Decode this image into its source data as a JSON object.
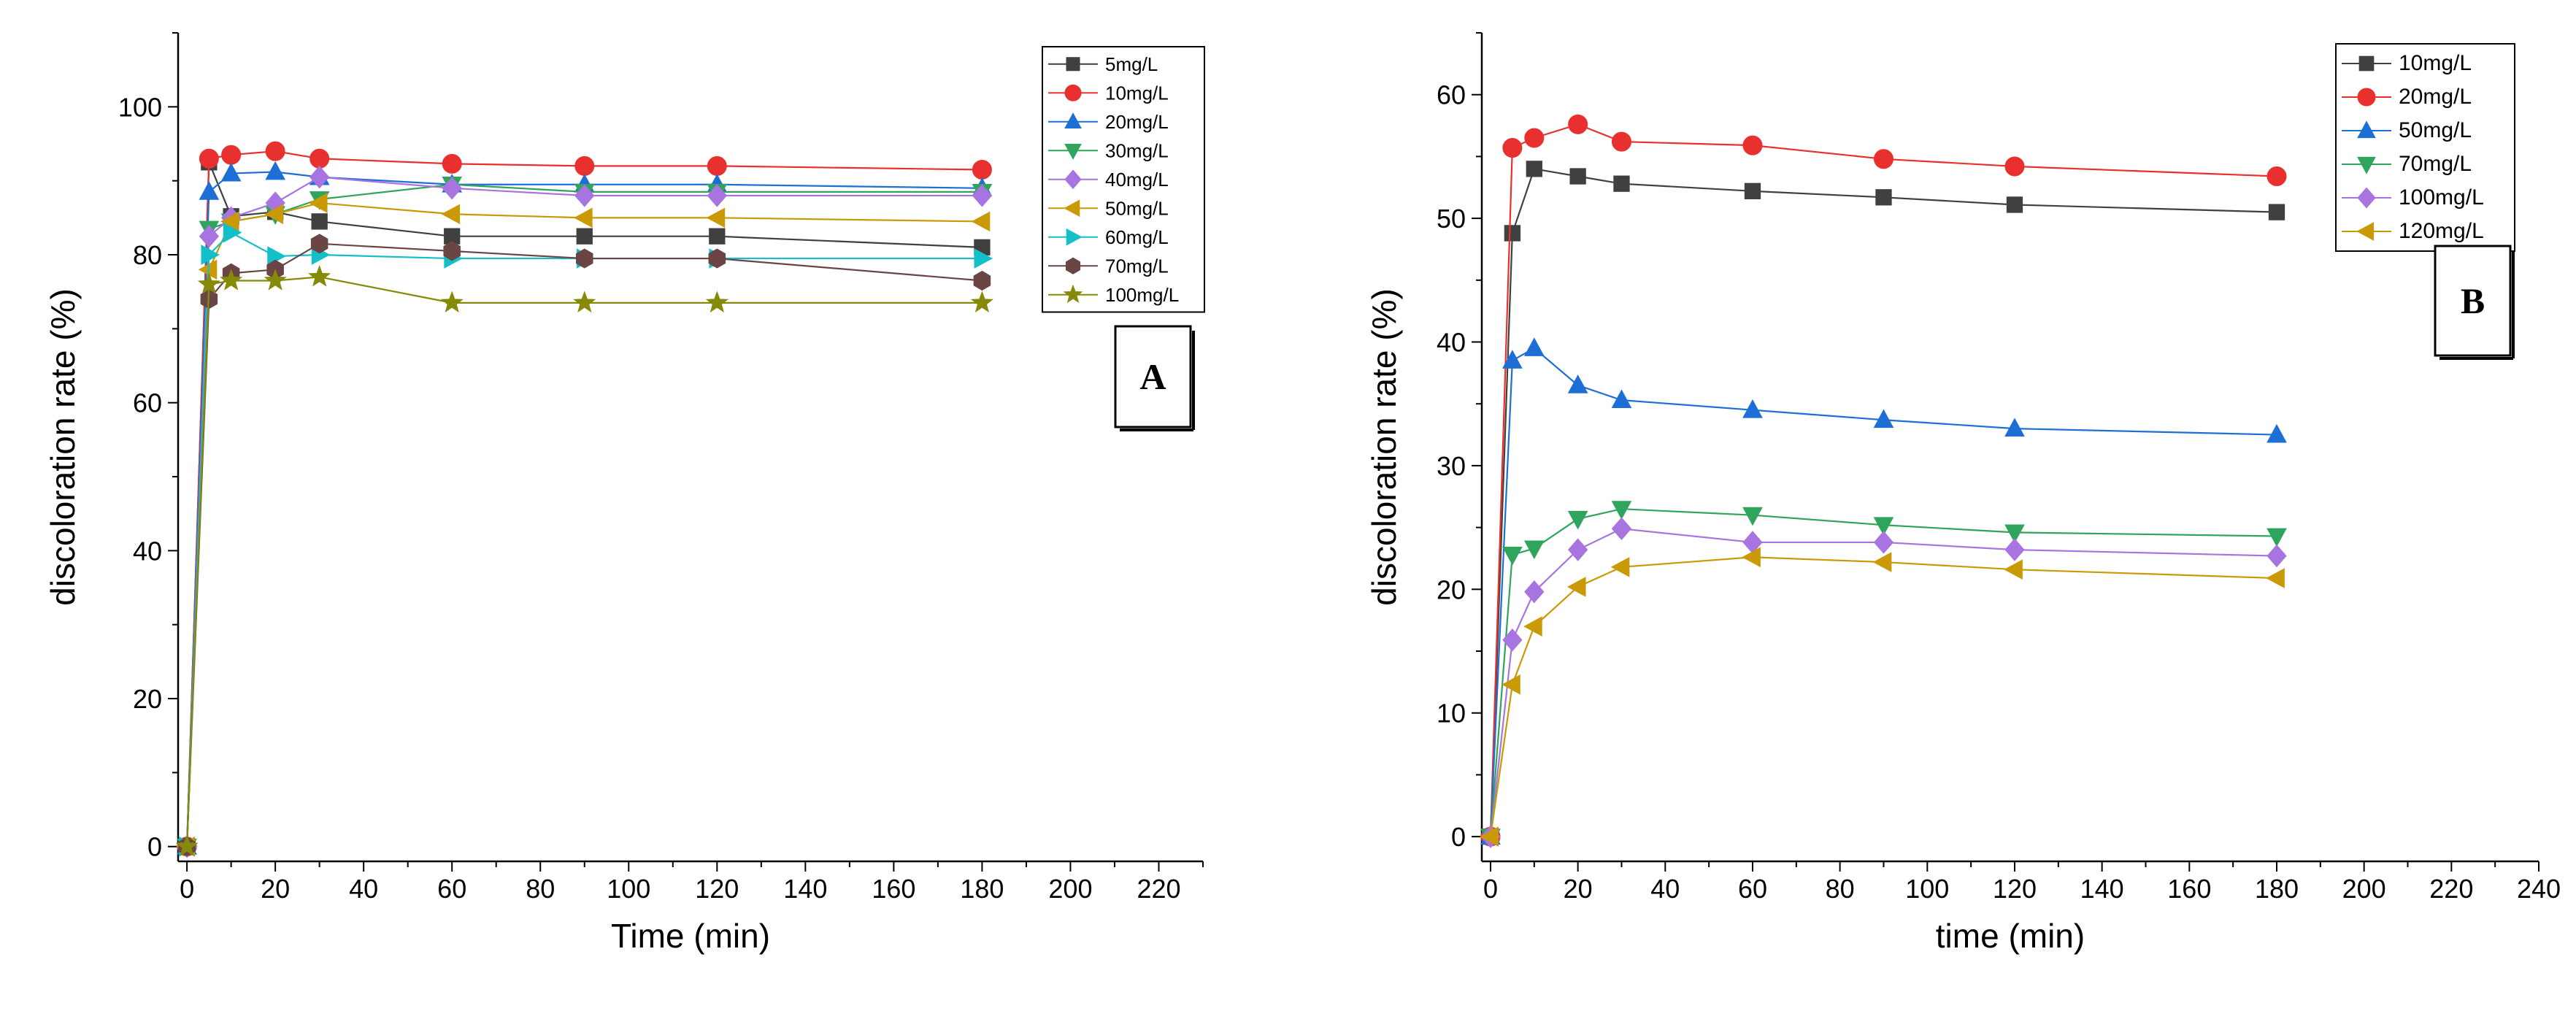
{
  "chart_data": [
    {
      "type": "line",
      "panel_label": "A",
      "xlabel": "Time (min)",
      "ylabel": "discoloration rate (%)",
      "xlim": [
        -2,
        230
      ],
      "ylim": [
        -2,
        110
      ],
      "xticks": [
        0,
        20,
        40,
        60,
        80,
        100,
        120,
        140,
        160,
        180,
        200,
        220
      ],
      "yticks": [
        0,
        20,
        40,
        60,
        80,
        100
      ],
      "legend_position": "top-right",
      "x": [
        0,
        5,
        10,
        20,
        30,
        60,
        90,
        120,
        180
      ],
      "series": [
        {
          "name": "5mg/L",
          "color": "#404040",
          "marker": "square",
          "values": [
            0,
            92.5,
            85.2,
            85.8,
            84.5,
            82.5,
            82.5,
            82.5,
            81.0
          ]
        },
        {
          "name": "10mg/L",
          "color": "#e8312f",
          "marker": "circle",
          "values": [
            0,
            93.0,
            93.5,
            94.0,
            93.0,
            92.3,
            92.0,
            92.0,
            91.5
          ]
        },
        {
          "name": "20mg/L",
          "color": "#1d6fd6",
          "marker": "triangle-up",
          "values": [
            0,
            88.5,
            91.0,
            91.2,
            90.5,
            89.5,
            89.5,
            89.5,
            89.0
          ]
        },
        {
          "name": "30mg/L",
          "color": "#2fa45c",
          "marker": "triangle-down",
          "values": [
            0,
            83.5,
            84.5,
            85.5,
            87.5,
            89.5,
            88.5,
            88.5,
            88.5
          ]
        },
        {
          "name": "40mg/L",
          "color": "#a874e0",
          "marker": "diamond",
          "values": [
            0,
            82.5,
            85.0,
            87.0,
            90.5,
            89.0,
            88.0,
            88.0,
            88.0
          ]
        },
        {
          "name": "50mg/L",
          "color": "#c99a06",
          "marker": "triangle-left",
          "values": [
            0,
            78.0,
            84.5,
            85.5,
            87.0,
            85.5,
            85.0,
            85.0,
            84.5
          ]
        },
        {
          "name": "60mg/L",
          "color": "#14c0c8",
          "marker": "triangle-right",
          "values": [
            0,
            80.0,
            83.0,
            79.8,
            80.0,
            79.5,
            79.5,
            79.5,
            79.5
          ]
        },
        {
          "name": "70mg/L",
          "color": "#6b4545",
          "marker": "hexagon",
          "values": [
            0,
            74.0,
            77.5,
            78.0,
            81.5,
            80.5,
            79.5,
            79.5,
            76.5
          ]
        },
        {
          "name": "100mg/L",
          "color": "#858a08",
          "marker": "star",
          "values": [
            0,
            76.0,
            76.5,
            76.5,
            77.0,
            73.5,
            73.5,
            73.5,
            73.5
          ]
        }
      ]
    },
    {
      "type": "line",
      "panel_label": "B",
      "xlabel": "time (min)",
      "ylabel": "discoloration rate (%)",
      "xlim": [
        -2,
        240
      ],
      "ylim": [
        -2,
        65
      ],
      "xticks": [
        0,
        20,
        40,
        60,
        80,
        100,
        120,
        140,
        160,
        180,
        200,
        220,
        240
      ],
      "yticks": [
        0,
        10,
        20,
        30,
        40,
        50,
        60
      ],
      "legend_position": "top-right",
      "x": [
        0,
        5,
        10,
        20,
        30,
        60,
        90,
        120,
        180
      ],
      "series": [
        {
          "name": "10mg/L",
          "color": "#404040",
          "marker": "square",
          "values": [
            0,
            48.8,
            54.0,
            53.4,
            52.8,
            52.2,
            51.7,
            51.1,
            50.5
          ]
        },
        {
          "name": "20mg/L",
          "color": "#e8312f",
          "marker": "circle",
          "values": [
            0,
            55.7,
            56.5,
            57.6,
            56.2,
            55.9,
            54.8,
            54.2,
            53.4
          ]
        },
        {
          "name": "50mg/L",
          "color": "#1d6fd6",
          "marker": "triangle-up",
          "values": [
            0,
            38.5,
            39.5,
            36.5,
            35.3,
            34.5,
            33.7,
            33.0,
            32.5
          ]
        },
        {
          "name": "70mg/L",
          "color": "#2fa45c",
          "marker": "triangle-down",
          "values": [
            0,
            22.8,
            23.3,
            25.7,
            26.5,
            26.0,
            25.2,
            24.6,
            24.3
          ]
        },
        {
          "name": "100mg/L",
          "color": "#a874e0",
          "marker": "diamond",
          "values": [
            0,
            15.9,
            19.8,
            23.2,
            24.9,
            23.8,
            23.8,
            23.2,
            22.7
          ]
        },
        {
          "name": "120mg/L",
          "color": "#c99a06",
          "marker": "triangle-left",
          "values": [
            0,
            12.3,
            17.0,
            20.2,
            21.8,
            22.6,
            22.2,
            21.6,
            20.9
          ]
        }
      ]
    }
  ]
}
